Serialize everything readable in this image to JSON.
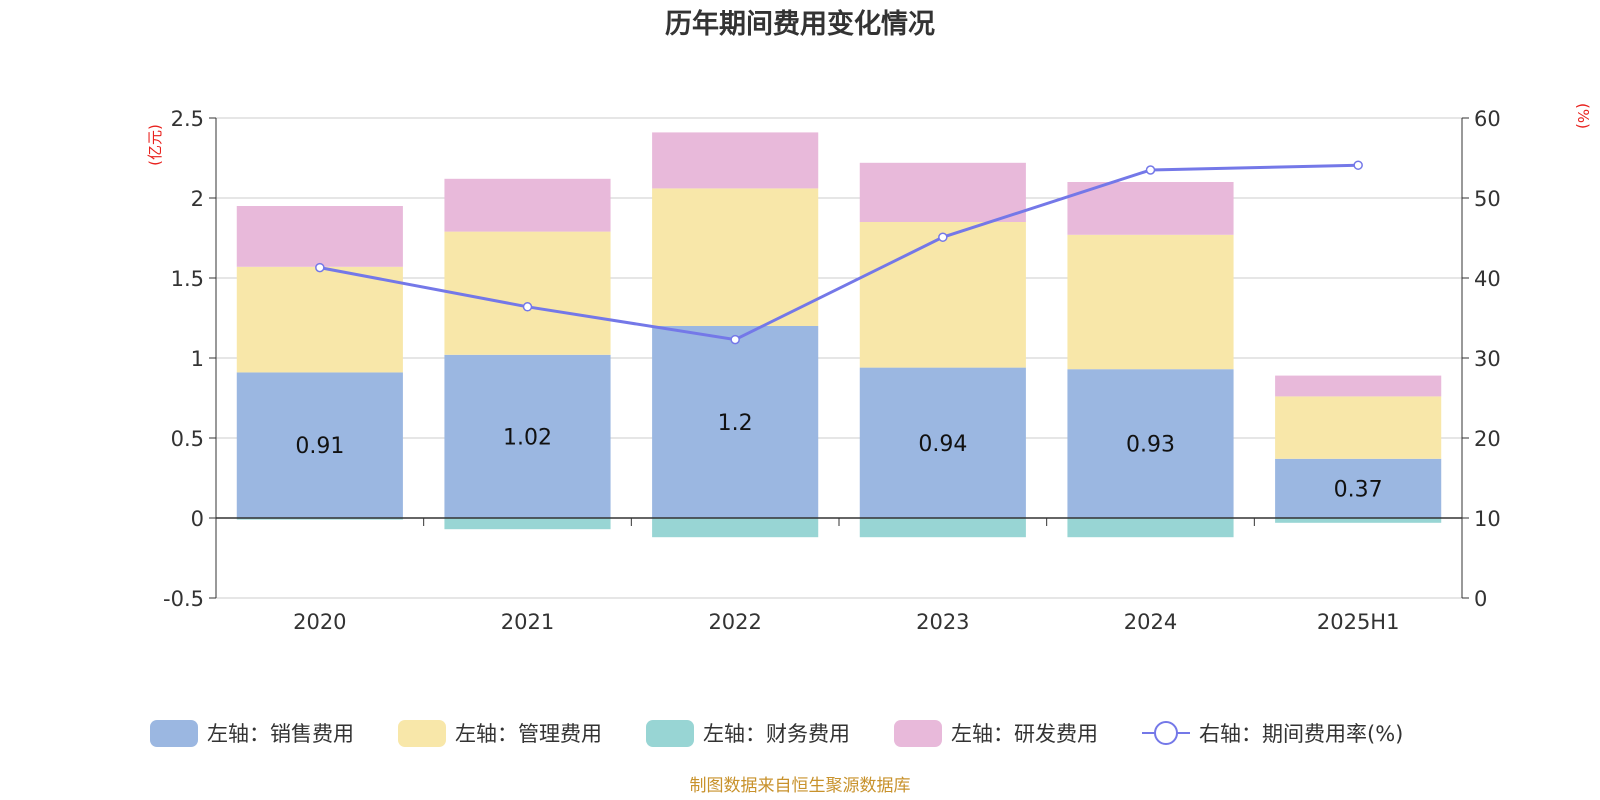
{
  "chart_data": {
    "type": "bar",
    "title": "历年期间费用变化情况",
    "left_axis_unit": "(亿元)",
    "right_axis_unit": "(%)",
    "categories": [
      "2020",
      "2021",
      "2022",
      "2023",
      "2024",
      "2025H1"
    ],
    "left_ylim": [
      -0.5,
      2.5
    ],
    "left_yticks": [
      "-0.5",
      "0",
      "0.5",
      "1",
      "1.5",
      "2",
      "2.5"
    ],
    "right_ylim": [
      0,
      60
    ],
    "right_yticks": [
      "0",
      "10",
      "20",
      "30",
      "40",
      "50",
      "60"
    ],
    "grid": true,
    "legend_position": "bottom",
    "series": [
      {
        "name": "左轴：销售费用",
        "kind": "bar",
        "axis": "left",
        "color": "#9bb7e1",
        "values": [
          0.91,
          1.02,
          1.2,
          0.94,
          0.93,
          0.37
        ],
        "labels": [
          "0.91",
          "1.02",
          "1.2",
          "0.94",
          "0.93",
          "0.37"
        ]
      },
      {
        "name": "左轴：管理费用",
        "kind": "bar",
        "axis": "left",
        "color": "#f8e7a9",
        "values": [
          0.66,
          0.77,
          0.86,
          0.91,
          0.84,
          0.39
        ]
      },
      {
        "name": "左轴：财务费用",
        "kind": "bar",
        "axis": "left",
        "color": "#98d5d4",
        "values": [
          -0.01,
          -0.07,
          -0.12,
          -0.12,
          -0.12,
          -0.03
        ]
      },
      {
        "name": "左轴：研发费用",
        "kind": "bar",
        "axis": "left",
        "color": "#e8b9da",
        "values": [
          0.38,
          0.33,
          0.35,
          0.37,
          0.33,
          0.13
        ]
      },
      {
        "name": "右轴：期间费用率(%)",
        "kind": "line",
        "axis": "right",
        "color": "#7478e8",
        "values": [
          41.3,
          36.4,
          32.3,
          45.1,
          53.5,
          54.1
        ]
      }
    ]
  },
  "footer": {
    "source": "制图数据来自恒生聚源数据库",
    "source_color": "#c8922c"
  },
  "colors": {
    "unit_label": "#e8211d",
    "axis_text": "#333333"
  }
}
